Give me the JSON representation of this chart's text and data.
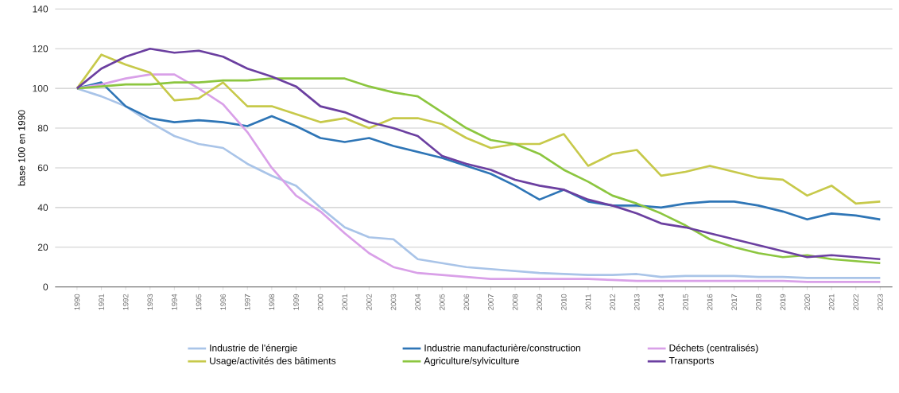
{
  "chart_data": {
    "type": "line",
    "ylabel": "base 100 en 1990",
    "categories": [
      "1990",
      "1991",
      "1992",
      "1993",
      "1994",
      "1995",
      "1996",
      "1997",
      "1998",
      "1999",
      "2000",
      "2001",
      "2002",
      "2003",
      "2004",
      "2005",
      "2006",
      "2007",
      "2008",
      "2009",
      "2010",
      "2011",
      "2012",
      "2013",
      "2014",
      "2015",
      "2016",
      "2017",
      "2018",
      "2019",
      "2020",
      "2021",
      "2022",
      "2023"
    ],
    "ylim": [
      0,
      140
    ],
    "yticks": [
      0,
      20,
      40,
      60,
      80,
      100,
      120,
      140
    ],
    "grid": "y",
    "legend": "bottom",
    "marker": "none",
    "line_style": "solid",
    "series": [
      {
        "name": "Industrie de l'énergie",
        "color": "#a9c4e8",
        "values": [
          100,
          96,
          91,
          83,
          76,
          72,
          70,
          62,
          56,
          51,
          40,
          30,
          25,
          24,
          14,
          12,
          10,
          9,
          8,
          7,
          6.5,
          6,
          6,
          6.5,
          5,
          5.5,
          5.5,
          5.5,
          5,
          5,
          4.5,
          4.5,
          4.5,
          4.5
        ]
      },
      {
        "name": "Industrie manufacturière/construction",
        "color": "#2e75b6",
        "values": [
          100,
          103,
          91,
          85,
          83,
          84,
          83,
          81,
          86,
          81,
          75,
          73,
          75,
          71,
          68,
          65,
          61,
          57,
          51,
          44,
          49,
          43,
          41,
          41,
          40,
          42,
          43,
          43,
          41,
          38,
          34,
          37,
          36,
          34
        ]
      },
      {
        "name": "Déchets (centralisés)",
        "color": "#d9a0e8",
        "values": [
          100,
          102,
          105,
          107,
          107,
          100,
          92,
          78,
          60,
          46,
          38,
          27,
          17,
          10,
          7,
          6,
          5,
          4,
          4,
          4,
          4,
          4,
          3.5,
          3,
          3,
          3,
          3,
          3,
          3,
          3,
          2.5,
          2.5,
          2.5,
          2.5
        ]
      },
      {
        "name": "Usage/activités des bâtiments",
        "color": "#c7c94a",
        "values": [
          100,
          117,
          112,
          108,
          94,
          95,
          103,
          91,
          91,
          87,
          83,
          85,
          80,
          85,
          85,
          82,
          75,
          70,
          72,
          72,
          77,
          61,
          67,
          69,
          56,
          58,
          61,
          58,
          55,
          54,
          46,
          51,
          42,
          43
        ]
      },
      {
        "name": "Agriculture/sylviculture",
        "color": "#8cc63f",
        "values": [
          100,
          101,
          102,
          102,
          103,
          103,
          104,
          104,
          105,
          105,
          105,
          105,
          101,
          98,
          96,
          88,
          80,
          74,
          72,
          67,
          59,
          53,
          46,
          42,
          37,
          31,
          24,
          20,
          17,
          15,
          16,
          14,
          13,
          12
        ]
      },
      {
        "name": "Transports",
        "color": "#6b3fa0",
        "values": [
          100,
          110,
          116,
          120,
          118,
          119,
          116,
          110,
          106,
          101,
          91,
          88,
          83,
          80,
          76,
          66,
          62,
          59,
          54,
          51,
          49,
          44,
          41,
          37,
          32,
          30,
          27,
          24,
          21,
          18,
          15,
          16,
          15,
          14
        ]
      }
    ]
  }
}
